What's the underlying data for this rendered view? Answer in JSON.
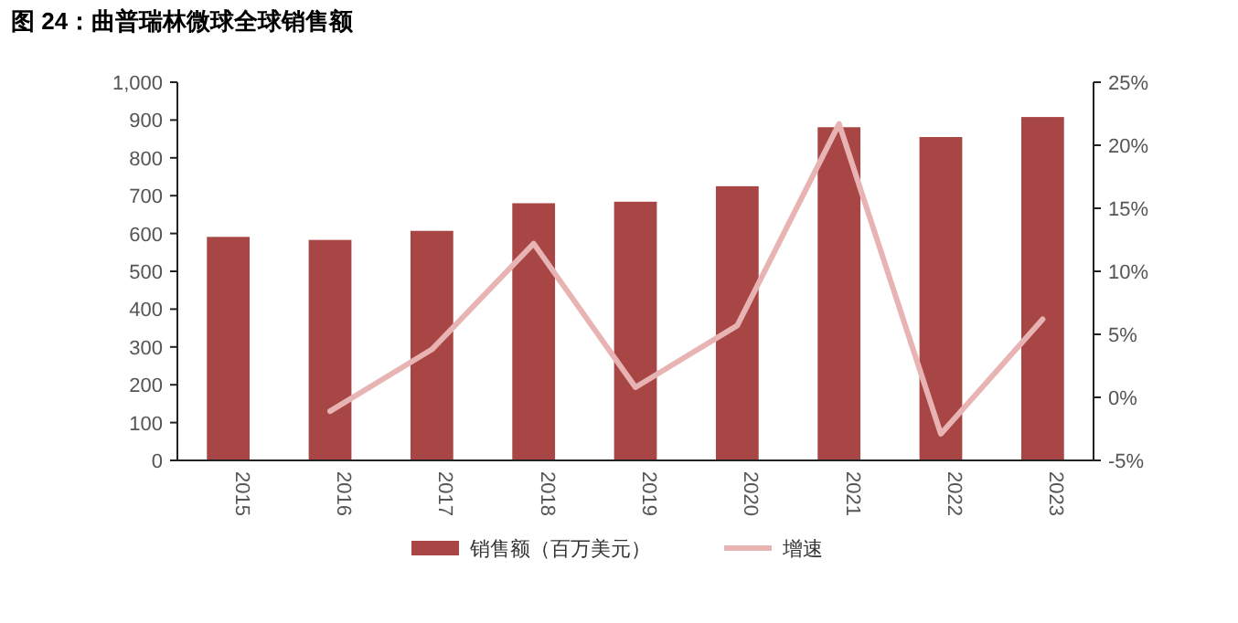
{
  "chart_data": {
    "type": "bar",
    "title": "图 24：曲普瑞林微球全球销售额",
    "categories": [
      "2015",
      "2016",
      "2017",
      "2018",
      "2019",
      "2020",
      "2021",
      "2022",
      "2023"
    ],
    "series": [
      {
        "name": "销售额（百万美元）",
        "color": "#a84645",
        "values": [
          591,
          583,
          607,
          680,
          684,
          725,
          881,
          855,
          908
        ]
      },
      {
        "name": "增速",
        "type": "line",
        "axis": "y2",
        "color": "#e8b4b3",
        "values": [
          null,
          -1.1,
          3.8,
          12.2,
          0.8,
          5.7,
          21.7,
          -2.9,
          6.2
        ]
      }
    ],
    "ylim": [
      0,
      1000
    ],
    "yticks": [
      {
        "value": 0,
        "label": "0"
      },
      {
        "value": 100,
        "label": "100"
      },
      {
        "value": 200,
        "label": "200"
      },
      {
        "value": 300,
        "label": "300"
      },
      {
        "value": 400,
        "label": "400"
      },
      {
        "value": 500,
        "label": "500"
      },
      {
        "value": 600,
        "label": "600"
      },
      {
        "value": 700,
        "label": "700"
      },
      {
        "value": 800,
        "label": "800"
      },
      {
        "value": 900,
        "label": "900"
      },
      {
        "value": 1000,
        "label": "1,000"
      }
    ],
    "y2lim": [
      -5,
      25
    ],
    "y2ticks": [
      {
        "value": -5,
        "label": "-5%"
      },
      {
        "value": 0,
        "label": "0%"
      },
      {
        "value": 5,
        "label": "5%"
      },
      {
        "value": 10,
        "label": "10%"
      },
      {
        "value": 15,
        "label": "15%"
      },
      {
        "value": 20,
        "label": "20%"
      },
      {
        "value": 25,
        "label": "25%"
      }
    ],
    "legend": "bottom",
    "grid": false
  }
}
